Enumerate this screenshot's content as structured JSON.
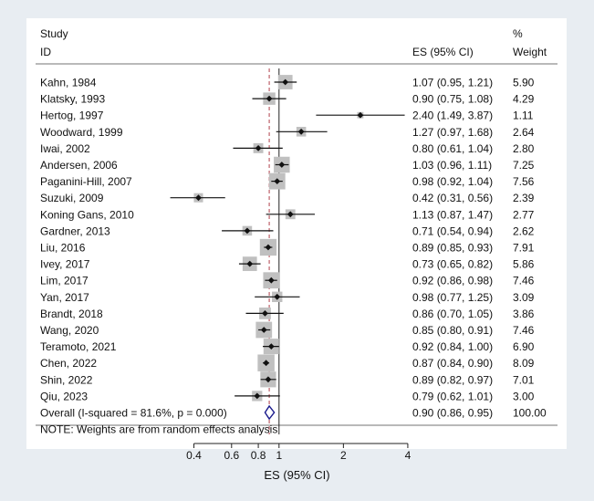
{
  "chart_data": {
    "type": "forest",
    "header": {
      "study_line1": "Study",
      "study_line2": "ID",
      "es_label": "ES (95% CI)",
      "weight_line1": "%",
      "weight_line2": "Weight"
    },
    "x_scale": "log",
    "x_ticks": [
      0.4,
      0.6,
      0.8,
      1,
      2,
      4
    ],
    "x_tick_labels": [
      "0.4",
      "0.6",
      "0.8",
      "1",
      "2",
      "4"
    ],
    "xlabel": "ES (95% CI)",
    "null_line": 1,
    "studies": [
      {
        "id": "Kahn, 1984",
        "es": 1.07,
        "lo": 0.95,
        "hi": 1.21,
        "ci_text": "1.07 (0.95, 1.21)",
        "weight": "5.90"
      },
      {
        "id": "Klatsky, 1993",
        "es": 0.9,
        "lo": 0.75,
        "hi": 1.08,
        "ci_text": "0.90 (0.75, 1.08)",
        "weight": "4.29"
      },
      {
        "id": "Hertog, 1997",
        "es": 2.4,
        "lo": 1.49,
        "hi": 3.87,
        "ci_text": "2.40 (1.49, 3.87)",
        "weight": "1.11"
      },
      {
        "id": "Woodward, 1999",
        "es": 1.27,
        "lo": 0.97,
        "hi": 1.68,
        "ci_text": "1.27 (0.97, 1.68)",
        "weight": "2.64"
      },
      {
        "id": "Iwai, 2002",
        "es": 0.8,
        "lo": 0.61,
        "hi": 1.04,
        "ci_text": "0.80 (0.61, 1.04)",
        "weight": "2.80"
      },
      {
        "id": "Andersen, 2006",
        "es": 1.03,
        "lo": 0.96,
        "hi": 1.11,
        "ci_text": "1.03 (0.96, 1.11)",
        "weight": "7.25"
      },
      {
        "id": "Paganini-Hill, 2007",
        "es": 0.98,
        "lo": 0.92,
        "hi": 1.04,
        "ci_text": "0.98 (0.92, 1.04)",
        "weight": "7.56"
      },
      {
        "id": "Suzuki, 2009",
        "es": 0.42,
        "lo": 0.31,
        "hi": 0.56,
        "ci_text": "0.42 (0.31, 0.56)",
        "weight": "2.39"
      },
      {
        "id": "Koning Gans, 2010",
        "es": 1.13,
        "lo": 0.87,
        "hi": 1.47,
        "ci_text": "1.13 (0.87, 1.47)",
        "weight": "2.77"
      },
      {
        "id": "Gardner, 2013",
        "es": 0.71,
        "lo": 0.54,
        "hi": 0.94,
        "ci_text": "0.71 (0.54, 0.94)",
        "weight": "2.62"
      },
      {
        "id": "Liu, 2016",
        "es": 0.89,
        "lo": 0.85,
        "hi": 0.93,
        "ci_text": "0.89 (0.85, 0.93)",
        "weight": "7.91"
      },
      {
        "id": "Ivey, 2017",
        "es": 0.73,
        "lo": 0.65,
        "hi": 0.82,
        "ci_text": "0.73 (0.65, 0.82)",
        "weight": "5.86"
      },
      {
        "id": "Lim, 2017",
        "es": 0.92,
        "lo": 0.86,
        "hi": 0.98,
        "ci_text": "0.92 (0.86, 0.98)",
        "weight": "7.46"
      },
      {
        "id": "Yan, 2017",
        "es": 0.98,
        "lo": 0.77,
        "hi": 1.25,
        "ci_text": "0.98 (0.77, 1.25)",
        "weight": "3.09"
      },
      {
        "id": "Brandt, 2018",
        "es": 0.86,
        "lo": 0.7,
        "hi": 1.05,
        "ci_text": "0.86 (0.70, 1.05)",
        "weight": "3.86"
      },
      {
        "id": "Wang, 2020",
        "es": 0.85,
        "lo": 0.8,
        "hi": 0.91,
        "ci_text": "0.85 (0.80, 0.91)",
        "weight": "7.46"
      },
      {
        "id": "Teramoto, 2021",
        "es": 0.92,
        "lo": 0.84,
        "hi": 1.0,
        "ci_text": "0.92 (0.84, 1.00)",
        "weight": "6.90"
      },
      {
        "id": "Chen, 2022",
        "es": 0.87,
        "lo": 0.84,
        "hi": 0.9,
        "ci_text": "0.87 (0.84, 0.90)",
        "weight": "8.09"
      },
      {
        "id": "Shin, 2022",
        "es": 0.89,
        "lo": 0.82,
        "hi": 0.97,
        "ci_text": "0.89 (0.82, 0.97)",
        "weight": "7.01"
      },
      {
        "id": "Qiu, 2023",
        "es": 0.79,
        "lo": 0.62,
        "hi": 1.01,
        "ci_text": "0.79 (0.62, 1.01)",
        "weight": "3.00"
      }
    ],
    "overall": {
      "label": "Overall  (I-squared = 81.6%, p = 0.000)",
      "es": 0.9,
      "lo": 0.86,
      "hi": 0.95,
      "ci_text": "0.90 (0.86, 0.95)",
      "weight": "100.00"
    },
    "note": "NOTE: Weights are from random effects analysis",
    "colors": {
      "page_background": "#e8edf2",
      "panel_background": "#ffffff",
      "weight_box": "#c0c0c0",
      "point": "#111111",
      "overall_diamond": "#1a1a8c",
      "reference_line": "#b0404a"
    }
  }
}
